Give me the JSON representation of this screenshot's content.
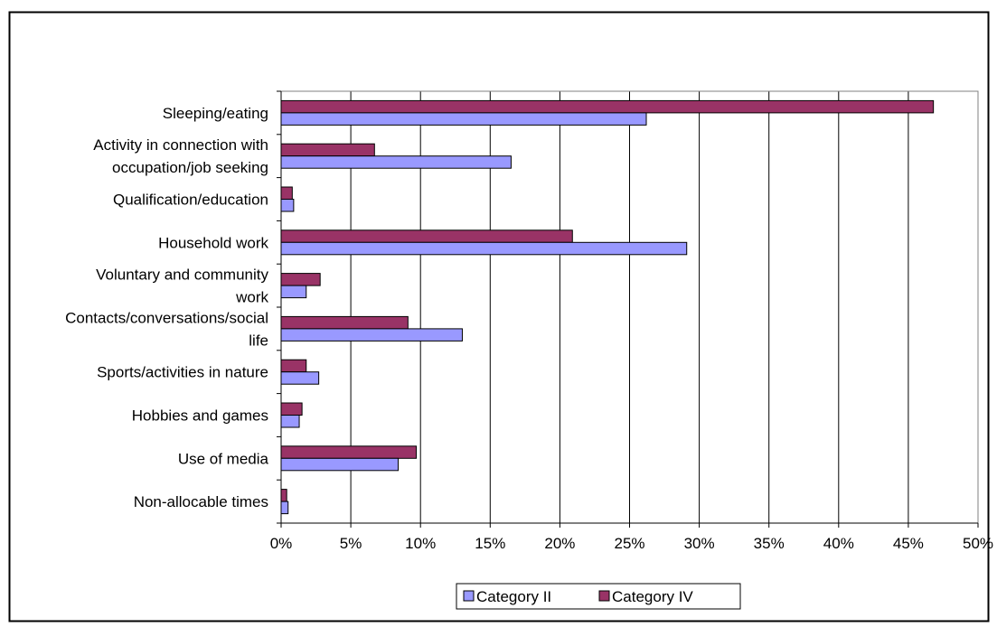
{
  "chart_data": {
    "type": "bar",
    "orientation": "horizontal",
    "categories": [
      "Sleeping/eating",
      "Activity in connection with occupation/job seeking",
      "Qualification/education",
      "Household work",
      "Voluntary and community work",
      "Contacts/conversations/social life",
      "Sports/activities in nature",
      "Hobbies and games",
      "Use of media",
      "Non-allocable times"
    ],
    "category_label_lines": [
      [
        "Sleeping/eating"
      ],
      [
        "Activity in connection with",
        "occupation/job seeking"
      ],
      [
        "Qualification/education"
      ],
      [
        "Household work"
      ],
      [
        "Voluntary and community",
        "work"
      ],
      [
        "Contacts/conversations/social",
        "life"
      ],
      [
        "Sports/activities in nature"
      ],
      [
        "Hobbies and games"
      ],
      [
        "Use of media"
      ],
      [
        "Non-allocable times"
      ]
    ],
    "series": [
      {
        "name": "Category II",
        "color": "#9999ff",
        "values": [
          26.2,
          16.5,
          0.9,
          29.1,
          1.8,
          13.0,
          2.7,
          1.3,
          8.4,
          0.5
        ]
      },
      {
        "name": "Category IV",
        "color": "#993366",
        "values": [
          46.8,
          6.7,
          0.8,
          20.9,
          2.8,
          9.1,
          1.8,
          1.5,
          9.7,
          0.4
        ]
      }
    ],
    "xlim": [
      0,
      50
    ],
    "x_ticks": [
      0,
      5,
      10,
      15,
      20,
      25,
      30,
      35,
      40,
      45,
      50
    ],
    "x_tick_labels": [
      "0%",
      "5%",
      "10%",
      "15%",
      "20%",
      "25%",
      "30%",
      "35%",
      "40%",
      "45%",
      "50%"
    ],
    "grid": true,
    "legend_position": "bottom-center"
  }
}
